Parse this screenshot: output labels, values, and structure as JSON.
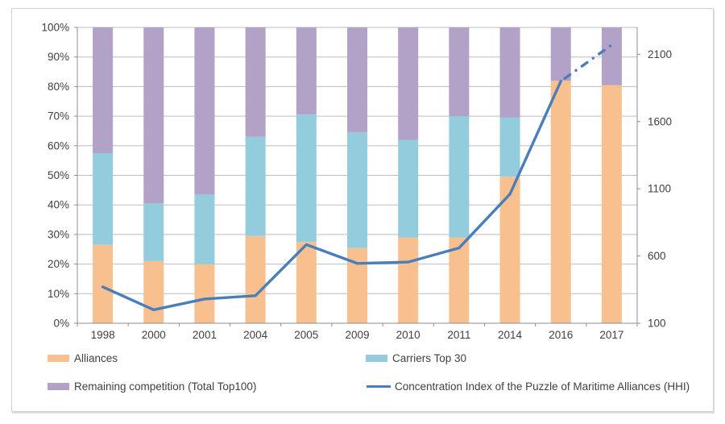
{
  "chart_data": {
    "type": "combo-stacked-100-bar-with-line",
    "categories": [
      "1998",
      "2000",
      "2001",
      "2004",
      "2005",
      "2009",
      "2010",
      "2011",
      "2014",
      "2016",
      "2017"
    ],
    "series": [
      {
        "name": "Alliances",
        "type": "bar",
        "stack_order": 1,
        "color": "#f9c08f",
        "values_pct": [
          26.5,
          21,
          20,
          29.5,
          27.5,
          25.5,
          29,
          29,
          49.5,
          82,
          80.5
        ]
      },
      {
        "name": "Carriers Top 30",
        "type": "bar",
        "stack_order": 2,
        "color": "#93cddd",
        "values_pct": [
          31,
          19.5,
          23.5,
          33.5,
          43,
          39,
          33,
          41,
          20,
          0,
          0
        ]
      },
      {
        "name": "Remaining competition (Total Top100)",
        "type": "bar",
        "stack_order": 3,
        "color": "#b2a2c7",
        "values_pct": [
          42.5,
          59.5,
          56.5,
          37,
          29.5,
          35.5,
          38,
          30,
          30.5,
          18,
          19.5
        ]
      },
      {
        "name": "Concentration Index of the Puzzle of Maritime Alliances (HHI)",
        "type": "line",
        "axis": "secondary",
        "color": "#4a7ebb",
        "values": [
          370,
          200,
          280,
          305,
          685,
          545,
          555,
          660,
          1060,
          1900,
          2170
        ],
        "last_segment_style": "dash-dot"
      }
    ],
    "left_axis": {
      "min": 0,
      "max": 100,
      "tick_step": 10,
      "tick_labels": [
        "0%",
        "10%",
        "20%",
        "30%",
        "40%",
        "50%",
        "60%",
        "70%",
        "80%",
        "90%",
        "100%"
      ]
    },
    "right_axis": {
      "min": 100,
      "max": 2300,
      "tick_values": [
        100,
        600,
        1100,
        1600,
        2100
      ],
      "tick_labels": [
        "100",
        "600",
        "1100",
        "1600",
        "2100"
      ]
    },
    "grid": {
      "shown": true,
      "color": "#bdbdbd",
      "axis_color": "#8e8e8e"
    },
    "text_color": "#3f3f3f",
    "legend": {
      "position": "bottom-two-columns"
    }
  }
}
